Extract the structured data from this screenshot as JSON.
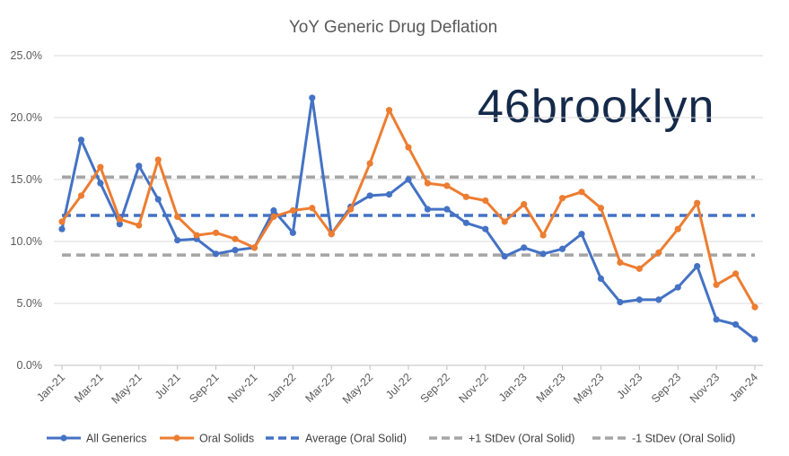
{
  "chart_data": {
    "type": "line",
    "title": "YoY Generic Drug Deflation",
    "logo_text": "46brooklyn",
    "x": [
      "Jan-21",
      "Feb-21",
      "Mar-21",
      "Apr-21",
      "May-21",
      "Jun-21",
      "Jul-21",
      "Aug-21",
      "Sep-21",
      "Oct-21",
      "Nov-21",
      "Dec-21",
      "Jan-22",
      "Feb-22",
      "Mar-22",
      "Apr-22",
      "May-22",
      "Jun-22",
      "Jul-22",
      "Aug-22",
      "Sep-22",
      "Oct-22",
      "Nov-22",
      "Dec-22",
      "Jan-23",
      "Feb-23",
      "Mar-23",
      "Apr-23",
      "May-23",
      "Jun-23",
      "Jul-23",
      "Aug-23",
      "Sep-23",
      "Oct-23",
      "Nov-23",
      "Dec-23",
      "Jan-24"
    ],
    "x_tick_labels": [
      "Jan-21",
      "Mar-21",
      "May-21",
      "Jul-21",
      "Sep-21",
      "Nov-21",
      "Jan-22",
      "Mar-22",
      "May-22",
      "Jul-22",
      "Sep-22",
      "Nov-22",
      "Jan-23",
      "Mar-23",
      "May-23",
      "Jul-23",
      "Sep-23",
      "Nov-23",
      "Jan-24"
    ],
    "y_tick_labels": [
      "0.0%",
      "5.0%",
      "10.0%",
      "15.0%",
      "20.0%",
      "25.0%"
    ],
    "ylim": [
      0,
      25
    ],
    "y_unit": "%",
    "series": [
      {
        "name": "All Generics",
        "color": "#4472c4",
        "style": "solid-marker",
        "values": [
          11.0,
          18.2,
          14.7,
          11.4,
          16.1,
          13.4,
          10.1,
          10.2,
          9.0,
          9.3,
          9.5,
          12.5,
          10.7,
          21.6,
          10.6,
          12.8,
          13.7,
          13.8,
          15.0,
          12.6,
          12.6,
          11.5,
          11.0,
          8.8,
          9.5,
          9.0,
          9.4,
          10.6,
          7.0,
          5.1,
          5.3,
          5.3,
          6.3,
          8.0,
          3.7,
          3.3,
          2.1
        ]
      },
      {
        "name": "Oral Solids",
        "color": "#ed7d31",
        "style": "solid-marker",
        "values": [
          11.6,
          13.7,
          16.0,
          11.8,
          11.3,
          16.6,
          12.0,
          10.5,
          10.7,
          10.2,
          9.5,
          12.0,
          12.5,
          12.7,
          10.6,
          12.6,
          16.3,
          20.6,
          17.6,
          14.7,
          14.5,
          13.6,
          13.3,
          11.6,
          13.0,
          10.5,
          13.5,
          14.0,
          12.7,
          8.3,
          7.8,
          9.1,
          11.0,
          13.1,
          6.5,
          7.4,
          4.7
        ]
      },
      {
        "name": "Average (Oral Solid)",
        "color": "#4472c4",
        "style": "dashed",
        "values_constant": 12.1
      },
      {
        "name": "+1 StDev (Oral Solid)",
        "color": "#a5a5a5",
        "style": "dashed",
        "values_constant": 15.2
      },
      {
        "name": "-1 StDev (Oral Solid)",
        "color": "#a5a5a5",
        "style": "dashed",
        "values_constant": 8.9
      }
    ],
    "grid": "horizontal",
    "legend_position": "bottom"
  }
}
